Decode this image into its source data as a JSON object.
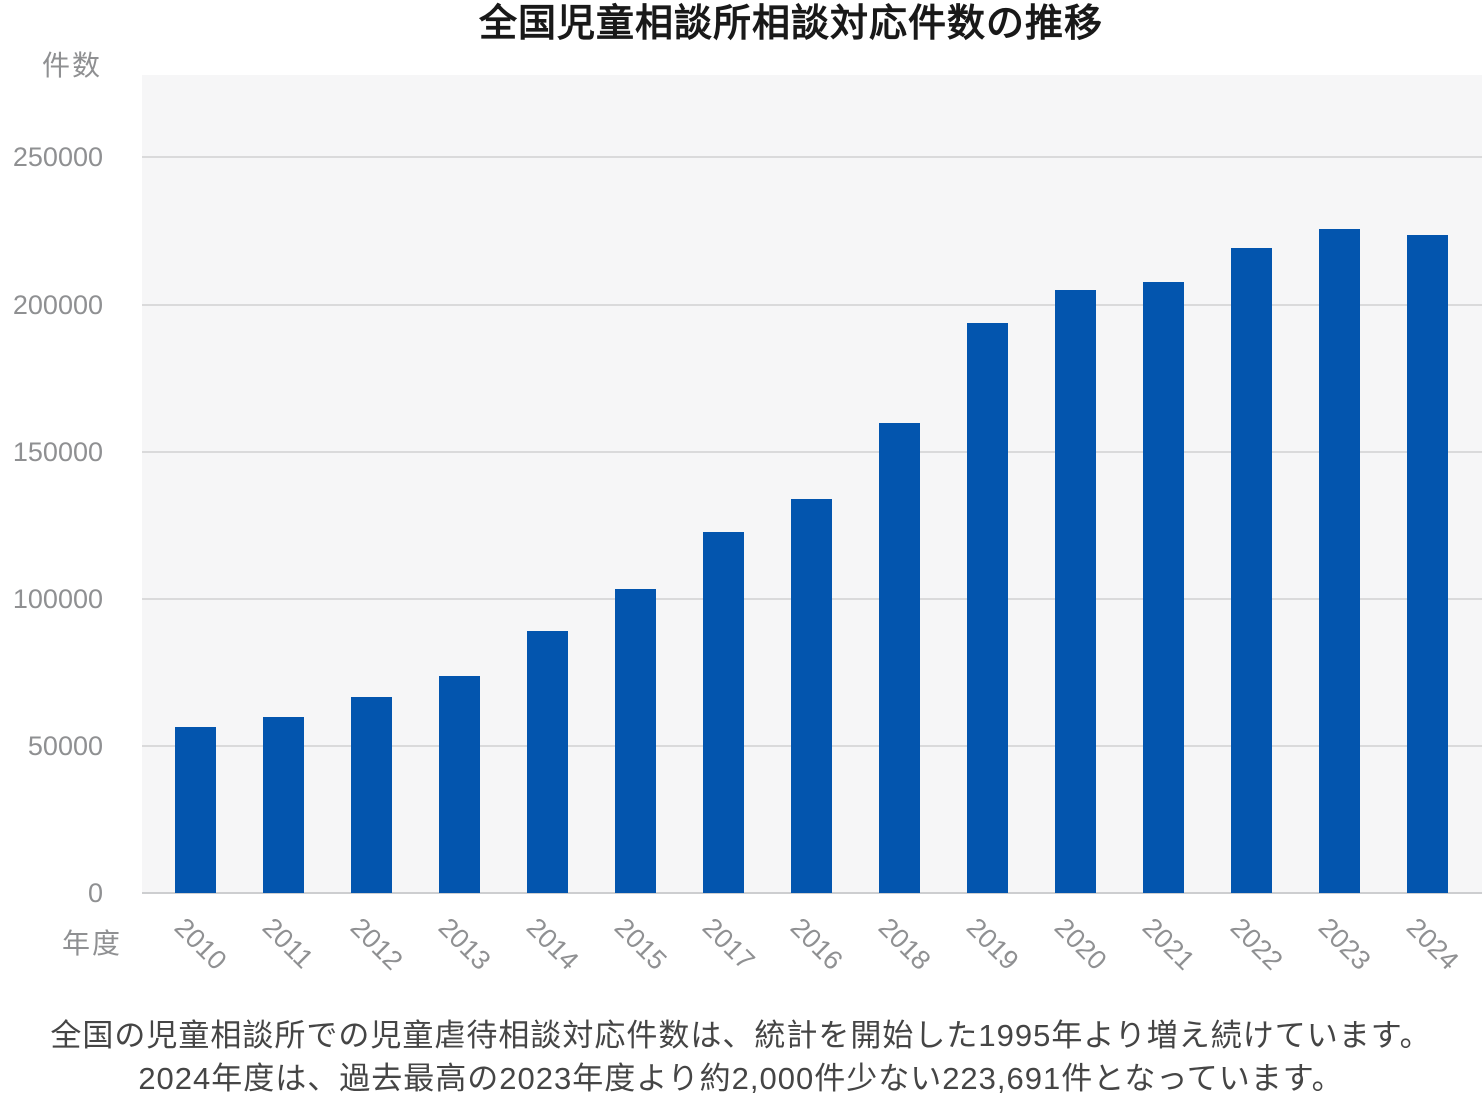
{
  "title": "全国児童相談所相談対応件数の推移",
  "y_axis": {
    "unit_label": "件数",
    "tick_values": [
      0,
      50000,
      100000,
      150000,
      200000,
      250000
    ]
  },
  "x_axis": {
    "unit_label": "年度"
  },
  "caption": {
    "line1": "全国の児童相談所での児童虐待相談対応件数は、統計を開始した1995年より増え続けています。",
    "line2": "2024年度は、過去最高の2023年度より約2,000件少ない223,691件となっています。"
  },
  "colors": {
    "bar": "#0355ae",
    "plot_background": "#f6f6f7",
    "gridline": "#dadadb",
    "axis_text": "#8f9092",
    "title_text": "#191919",
    "caption_text": "#454545"
  },
  "chart_data": {
    "type": "bar",
    "title": "全国児童相談所相談対応件数の推移",
    "xlabel": "年度",
    "ylabel": "件数",
    "categories": [
      "2010",
      "2011",
      "2012",
      "2013",
      "2014",
      "2015",
      "2017",
      "2016",
      "2018",
      "2019",
      "2020",
      "2021",
      "2022",
      "2023",
      "2024"
    ],
    "values": [
      56384,
      59919,
      66701,
      73802,
      88931,
      103286,
      122575,
      133778,
      159838,
      193780,
      205044,
      207660,
      219170,
      225509,
      223691
    ],
    "ylim": [
      0,
      278000
    ],
    "y_ticks": [
      0,
      50000,
      100000,
      150000,
      200000,
      250000
    ],
    "grid": true,
    "legend": "none"
  }
}
